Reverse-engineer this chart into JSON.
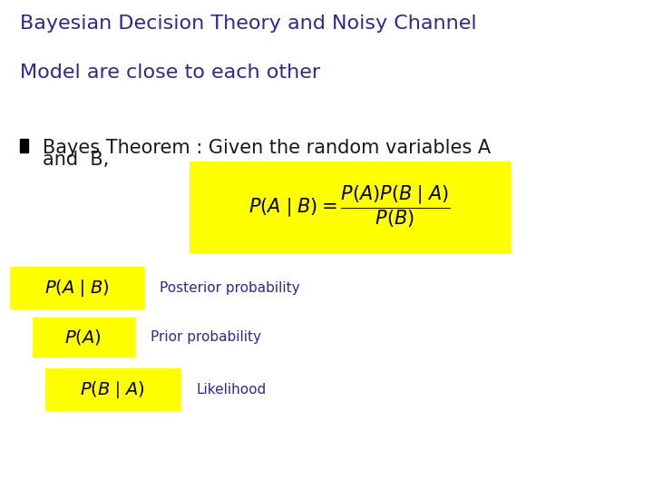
{
  "title_line1": "Bayesian Decision Theory and Noisy Channel",
  "title_line2": "Model are close to each other",
  "title_color": "#2B2B8B",
  "title_fontsize": 16,
  "bullet_color": "#1a1a1a",
  "bullet_text_line1": "Bayes Theorem : Given the random variables A",
  "bullet_text_line2": "and  B,",
  "bullet_fontsize": 15,
  "formula_main": "$P(A\\mid B) = \\dfrac{P(A)P(B\\mid A)}{P(B)}$",
  "label1_formula": "$P(A\\mid B)$",
  "label1_text": "Posterior probability",
  "label2_formula": "$P(A)$",
  "label2_text": "Prior probability",
  "label3_formula": "$P(B\\mid A)$",
  "label3_text": "Likelihood",
  "highlight_color": "#FFFF00",
  "label_text_color": "#2B2B8B",
  "background_color": "#ffffff",
  "formula_fontsize": 15,
  "label_formula_fontsize": 14,
  "label_text_fontsize": 11
}
